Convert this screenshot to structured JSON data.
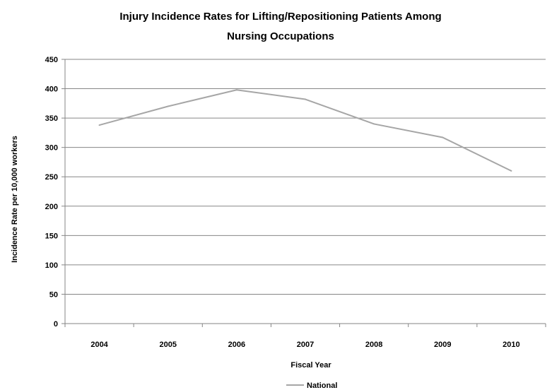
{
  "chart_data": {
    "type": "line",
    "title_lines": [
      "Injury Incidence Rates for Lifting/Repositioning Patients Among",
      "Nursing Occupations"
    ],
    "xlabel": "Fiscal Year",
    "ylabel": "Incidence Rate per 10,000 workers",
    "categories": [
      "2004",
      "2005",
      "2006",
      "2007",
      "2008",
      "2009",
      "2010"
    ],
    "series": [
      {
        "name": "National",
        "values": [
          338,
          370,
          398,
          382,
          340,
          317,
          260
        ],
        "color": "#a6a6a6"
      }
    ],
    "ylim": [
      0,
      450
    ],
    "yticks": [
      "0",
      "50",
      "100",
      "150",
      "200",
      "250",
      "300",
      "350",
      "400",
      "450"
    ],
    "grid": true,
    "legend_position": "bottom"
  }
}
